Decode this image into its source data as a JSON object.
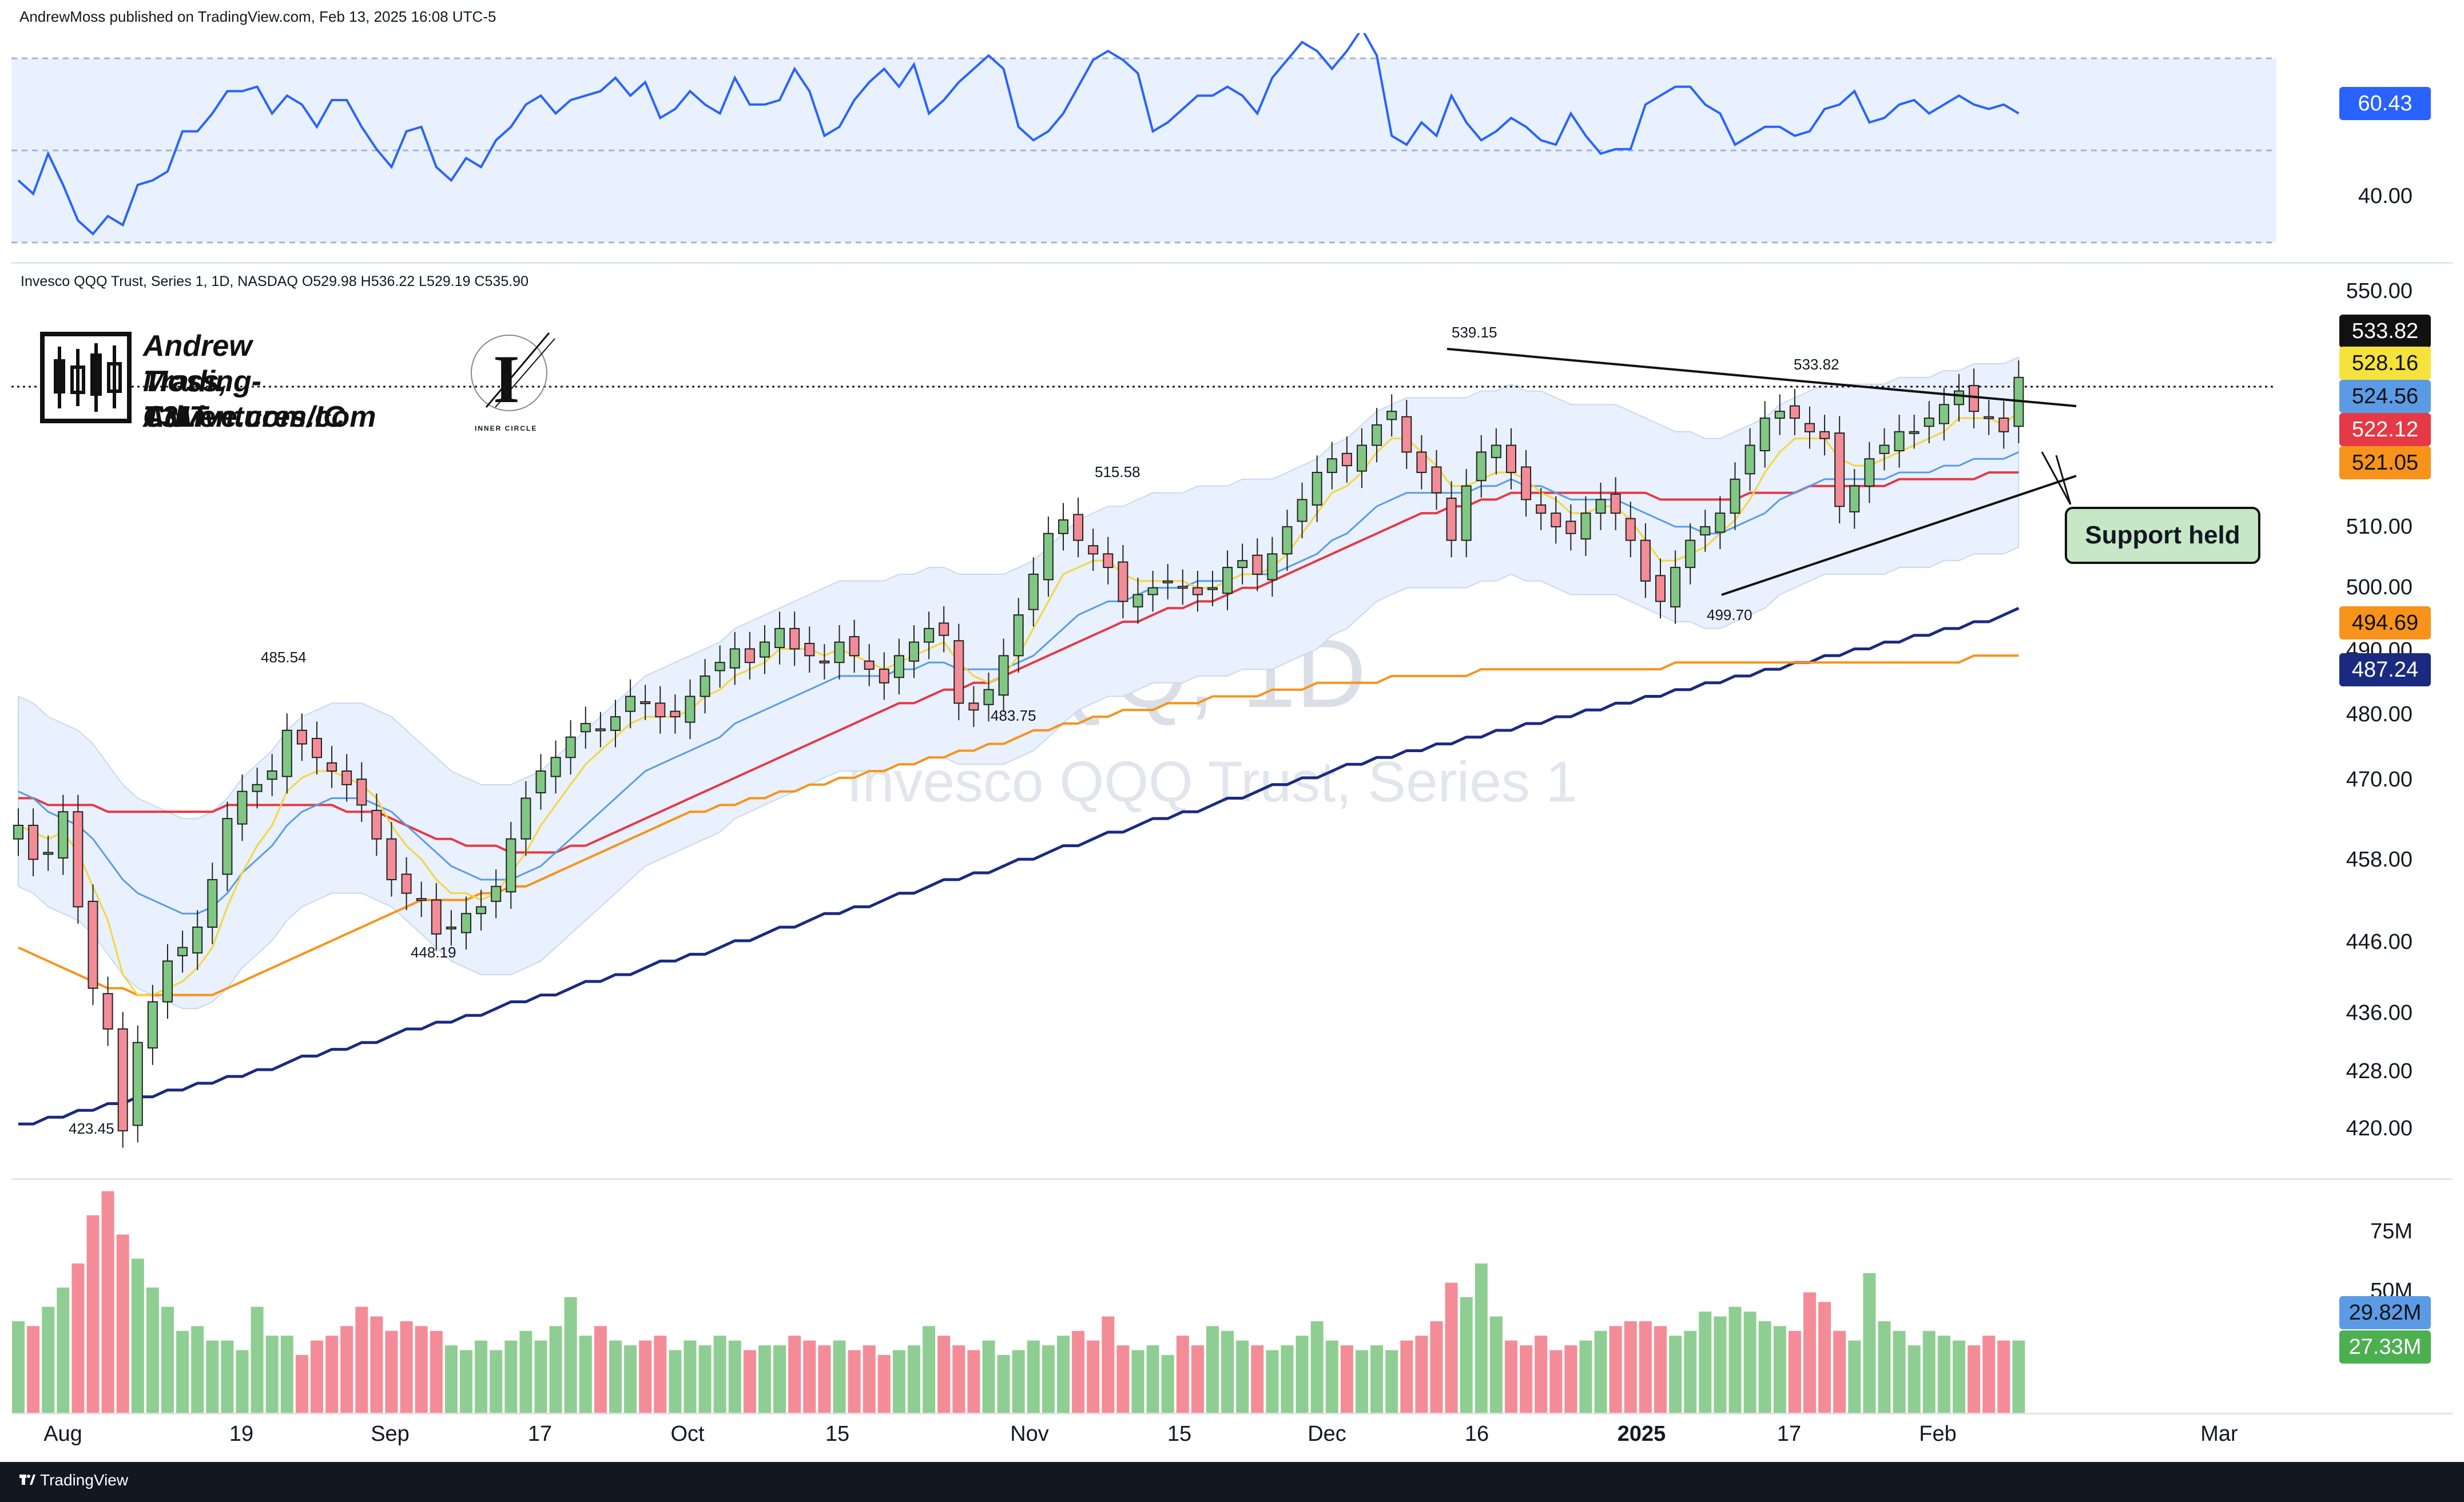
{
  "header": {
    "publish_line": "AndrewMoss published on TradingView.com, Feb 13, 2025 16:08 UTC-5",
    "symbol_line": "Invesco QQQ Trust, Series 1, 1D, NASDAQ  O529.98  H536.22  L529.19  C535.90"
  },
  "branding": {
    "name": "Andrew Moss, CMT",
    "site1": "Trading-Adventures.com",
    "site2": "T3Live.com/IC",
    "logo_letter": "I",
    "logo_caption": "INNER CIRCLE"
  },
  "watermark": {
    "symbol": "QQQ, 1D",
    "description": "Invesco QQQ Trust, Series 1"
  },
  "annotation": {
    "support_label": "Support held"
  },
  "footer": {
    "brand": "TradingView"
  },
  "colors": {
    "up": "#81c784",
    "down": "#f48c97",
    "up_border": "#2e7d32",
    "down_border": "#c62828",
    "ema_yellow": "#f5d63d",
    "sma_blue": "#5b9be6",
    "sma_red": "#e53945",
    "sma_orange": "#f7931a",
    "sma_navy": "#1a2a80",
    "rsi": "#2962ff",
    "band_fill": "#e8f1fd"
  },
  "chart_data": [
    {
      "type": "line",
      "name": "RSI",
      "levels": {
        "upper": 70,
        "middle": 50,
        "lower": 30
      },
      "ylim": [
        28,
        78
      ],
      "y_tick_labels": [
        "40.00"
      ],
      "last_value_label": "60.43",
      "values": [
        45,
        42,
        51,
        44,
        36,
        33,
        37,
        35,
        44,
        45,
        47,
        56,
        56,
        60,
        65,
        65,
        66,
        60,
        64,
        62,
        57,
        63,
        63,
        57,
        52,
        48,
        56,
        57,
        48,
        45,
        50,
        48,
        54,
        57,
        62,
        64,
        60,
        63,
        64,
        65,
        68,
        64,
        67,
        59,
        61,
        65,
        62,
        60,
        68,
        62,
        62,
        63,
        70,
        65,
        55,
        57,
        63,
        67,
        70,
        66,
        71,
        60,
        63,
        67,
        70,
        73,
        70,
        57,
        54,
        56,
        60,
        66,
        72,
        74,
        72,
        69,
        56,
        58,
        61,
        64,
        64,
        66,
        64,
        60,
        68,
        72,
        76,
        74,
        70,
        74,
        79,
        73,
        55,
        53,
        58,
        55,
        64,
        58,
        54,
        56,
        59,
        57,
        54,
        53,
        60,
        55,
        51,
        52,
        52,
        62,
        64,
        66,
        66,
        62,
        60,
        53,
        55,
        57,
        57,
        55,
        56,
        61,
        62,
        65,
        58,
        59,
        62,
        63,
        60,
        62,
        64,
        62,
        61,
        62,
        60
      ]
    },
    {
      "type": "candlestick",
      "name": "Invesco QQQ Trust, Series 1",
      "interval": "1D",
      "ohlc_last": {
        "open": 529.98,
        "high": 536.22,
        "low": 529.19,
        "close": 535.9
      },
      "x_labels": [
        "Aug",
        "19",
        "Sep",
        "17",
        "Oct",
        "15",
        "Nov",
        "15",
        "Dec",
        "16",
        "2025",
        "17",
        "Feb",
        "Mar"
      ],
      "y_tick_labels": [
        "550.00",
        "510.00",
        "500.00",
        "490.00",
        "480.00",
        "470.00",
        "458.00",
        "446.00",
        "436.00",
        "428.00",
        "420.00"
      ],
      "price_tags": [
        "533.82",
        "528.16",
        "524.56",
        "522.12",
        "521.05",
        "494.69",
        "487.24"
      ],
      "annotations": [
        "539.15",
        "533.82",
        "515.58",
        "485.54",
        "483.75",
        "499.70",
        "448.19",
        "423.45"
      ],
      "closes": [
        470,
        465,
        466,
        472,
        458,
        446,
        440,
        425,
        438,
        444,
        450,
        452,
        455,
        462,
        471,
        475,
        476,
        478,
        484,
        482,
        480,
        478,
        476,
        473,
        468,
        462,
        460,
        459,
        454,
        455,
        457,
        458,
        461,
        468,
        474,
        478,
        480,
        483,
        485,
        484,
        486,
        489,
        488,
        486,
        486,
        489,
        492,
        494,
        496,
        494,
        497,
        499,
        496,
        495,
        494,
        497,
        495,
        493,
        491,
        495,
        497,
        499,
        498,
        488,
        487,
        490,
        495,
        501,
        507,
        513,
        515,
        512,
        510,
        508,
        503,
        504,
        505,
        506,
        505,
        504,
        505,
        508,
        509,
        507,
        510,
        514,
        518,
        522,
        524,
        523,
        526,
        529,
        531,
        525,
        522,
        519,
        512,
        520,
        525,
        526,
        522,
        518,
        516,
        514,
        513,
        516,
        518,
        516,
        512,
        506,
        503,
        508,
        512,
        514,
        516,
        521,
        526,
        530,
        531,
        530,
        528,
        527,
        517,
        520,
        524,
        526,
        528,
        528,
        530,
        532,
        534,
        531,
        530,
        528,
        536
      ],
      "ema_values": [
        470,
        469,
        468,
        469,
        466,
        461,
        456,
        448,
        445,
        445,
        446,
        447,
        449,
        452,
        458,
        463,
        467,
        470,
        475,
        477,
        478,
        478,
        477,
        476,
        474,
        470,
        467,
        465,
        462,
        460,
        460,
        459,
        460,
        463,
        466,
        470,
        473,
        476,
        479,
        481,
        483,
        485,
        486,
        486,
        486,
        487,
        489,
        490,
        492,
        493,
        494,
        496,
        496,
        496,
        495,
        496,
        495,
        494,
        493,
        494,
        495,
        496,
        497,
        494,
        492,
        491,
        492,
        495,
        499,
        503,
        507,
        508,
        509,
        509,
        507,
        506,
        506,
        506,
        506,
        505,
        505,
        506,
        507,
        507,
        508,
        510,
        513,
        516,
        519,
        520,
        522,
        525,
        527,
        527,
        525,
        523,
        520,
        520,
        521,
        522,
        522,
        521,
        519,
        518,
        516,
        516,
        517,
        517,
        515,
        512,
        509,
        509,
        510,
        511,
        513,
        515,
        518,
        522,
        525,
        527,
        527,
        527,
        524,
        523,
        523,
        524,
        525,
        526,
        527,
        528,
        530,
        530,
        530,
        529,
        531
      ],
      "sma20_values": [
        475,
        474,
        472,
        471,
        470,
        468,
        465,
        462,
        460,
        459,
        458,
        457,
        457,
        458,
        460,
        463,
        465,
        467,
        470,
        472,
        473,
        474,
        474,
        474,
        473,
        472,
        470,
        468,
        466,
        464,
        463,
        462,
        462,
        462,
        463,
        464,
        466,
        468,
        470,
        472,
        474,
        476,
        478,
        479,
        480,
        481,
        482,
        483,
        485,
        486,
        487,
        488,
        489,
        490,
        491,
        492,
        492,
        492,
        492,
        493,
        493,
        494,
        494,
        493,
        493,
        493,
        493,
        494,
        495,
        497,
        499,
        501,
        502,
        503,
        503,
        504,
        505,
        505,
        505,
        506,
        506,
        506,
        507,
        507,
        507,
        508,
        509,
        510,
        512,
        513,
        515,
        517,
        518,
        519,
        519,
        519,
        519,
        519,
        520,
        520,
        521,
        520,
        520,
        519,
        518,
        518,
        518,
        518,
        517,
        516,
        515,
        514,
        514,
        513,
        513,
        514,
        515,
        516,
        518,
        519,
        520,
        521,
        521,
        521,
        521,
        521,
        522,
        522,
        522,
        523,
        523,
        524,
        524,
        524,
        525
      ],
      "sma50_values": [
        474,
        474,
        473,
        473,
        473,
        473,
        472,
        472,
        472,
        472,
        472,
        472,
        472,
        472,
        473,
        473,
        473,
        473,
        473,
        473,
        473,
        473,
        472,
        472,
        472,
        471,
        470,
        469,
        468,
        468,
        467,
        467,
        467,
        466,
        466,
        466,
        466,
        467,
        467,
        468,
        469,
        470,
        471,
        472,
        473,
        474,
        475,
        476,
        477,
        478,
        479,
        480,
        481,
        482,
        483,
        484,
        485,
        486,
        487,
        488,
        488,
        489,
        490,
        490,
        491,
        491,
        492,
        493,
        494,
        495,
        496,
        497,
        498,
        499,
        500,
        500,
        501,
        502,
        502,
        503,
        503,
        504,
        505,
        505,
        506,
        507,
        508,
        509,
        510,
        511,
        512,
        513,
        514,
        515,
        516,
        516,
        517,
        517,
        518,
        518,
        519,
        519,
        519,
        519,
        519,
        519,
        519,
        519,
        519,
        519,
        518,
        518,
        518,
        518,
        518,
        518,
        519,
        519,
        519,
        519,
        520,
        520,
        520,
        520,
        520,
        520,
        521,
        521,
        521,
        521,
        521,
        521,
        522,
        522,
        522
      ],
      "sma100_values": [
        452,
        451,
        450,
        449,
        448,
        447,
        446,
        446,
        445,
        445,
        445,
        445,
        445,
        445,
        446,
        447,
        448,
        449,
        450,
        451,
        452,
        453,
        454,
        455,
        456,
        457,
        458,
        459,
        459,
        459,
        459,
        460,
        460,
        461,
        461,
        462,
        463,
        464,
        465,
        466,
        467,
        468,
        469,
        470,
        471,
        472,
        472,
        473,
        473,
        474,
        474,
        475,
        475,
        476,
        476,
        477,
        477,
        478,
        478,
        479,
        479,
        480,
        480,
        481,
        481,
        482,
        482,
        483,
        484,
        484,
        485,
        485,
        486,
        486,
        487,
        487,
        487,
        488,
        488,
        488,
        489,
        489,
        489,
        489,
        490,
        490,
        490,
        491,
        491,
        491,
        491,
        491,
        492,
        492,
        492,
        492,
        492,
        492,
        493,
        493,
        493,
        493,
        493,
        493,
        493,
        493,
        493,
        493,
        493,
        493,
        493,
        494,
        494,
        494,
        494,
        494,
        494,
        494,
        494,
        494,
        494,
        494,
        494,
        494,
        494,
        494,
        494,
        494,
        494,
        494,
        494,
        495,
        495,
        495,
        495
      ],
      "sma200_values": [
        426,
        426,
        427,
        427,
        428,
        428,
        429,
        429,
        430,
        430,
        431,
        431,
        432,
        432,
        433,
        433,
        434,
        434,
        435,
        436,
        436,
        437,
        437,
        438,
        438,
        439,
        440,
        440,
        441,
        441,
        442,
        442,
        443,
        444,
        444,
        445,
        445,
        446,
        447,
        447,
        448,
        448,
        449,
        450,
        450,
        451,
        451,
        452,
        453,
        453,
        454,
        455,
        455,
        456,
        457,
        457,
        458,
        458,
        459,
        460,
        460,
        461,
        462,
        462,
        463,
        463,
        464,
        465,
        465,
        466,
        467,
        467,
        468,
        469,
        469,
        470,
        471,
        471,
        472,
        472,
        473,
        474,
        474,
        475,
        476,
        476,
        477,
        477,
        478,
        479,
        479,
        480,
        480,
        481,
        481,
        482,
        482,
        483,
        483,
        484,
        484,
        485,
        485,
        486,
        486,
        487,
        487,
        488,
        488,
        489,
        489,
        490,
        490,
        491,
        491,
        492,
        492,
        493,
        493,
        494,
        494,
        495,
        495,
        496,
        496,
        497,
        497,
        498,
        498,
        499,
        499,
        500,
        500,
        501,
        502
      ],
      "ylim": [
        418,
        552
      ]
    },
    {
      "type": "bar",
      "name": "Volume",
      "y_tick_labels": [
        "75M",
        "50M"
      ],
      "tags": [
        "29.82M",
        "27.33M"
      ],
      "values": [
        38,
        36,
        44,
        52,
        62,
        82,
        92,
        74,
        64,
        52,
        44,
        34,
        36,
        30,
        30,
        26,
        44,
        32,
        32,
        24,
        30,
        32,
        36,
        44,
        40,
        34,
        38,
        36,
        34,
        28,
        26,
        30,
        26,
        30,
        34,
        30,
        36,
        48,
        32,
        36,
        30,
        28,
        30,
        32,
        26,
        30,
        28,
        32,
        30,
        26,
        28,
        28,
        32,
        30,
        28,
        30,
        26,
        28,
        24,
        26,
        28,
        36,
        32,
        28,
        26,
        30,
        24,
        26,
        30,
        28,
        32,
        34,
        30,
        40,
        28,
        26,
        28,
        24,
        32,
        28,
        36,
        34,
        30,
        28,
        26,
        28,
        32,
        38,
        30,
        28,
        26,
        28,
        26,
        30,
        32,
        38,
        54,
        48,
        62,
        40,
        30,
        28,
        32,
        26,
        28,
        30,
        34,
        36,
        38,
        38,
        36,
        32,
        34,
        42,
        40,
        44,
        42,
        38,
        36,
        34,
        50,
        46,
        34,
        30,
        58,
        38,
        34,
        28,
        34,
        32,
        30,
        28,
        32,
        30,
        30
      ]
    }
  ]
}
